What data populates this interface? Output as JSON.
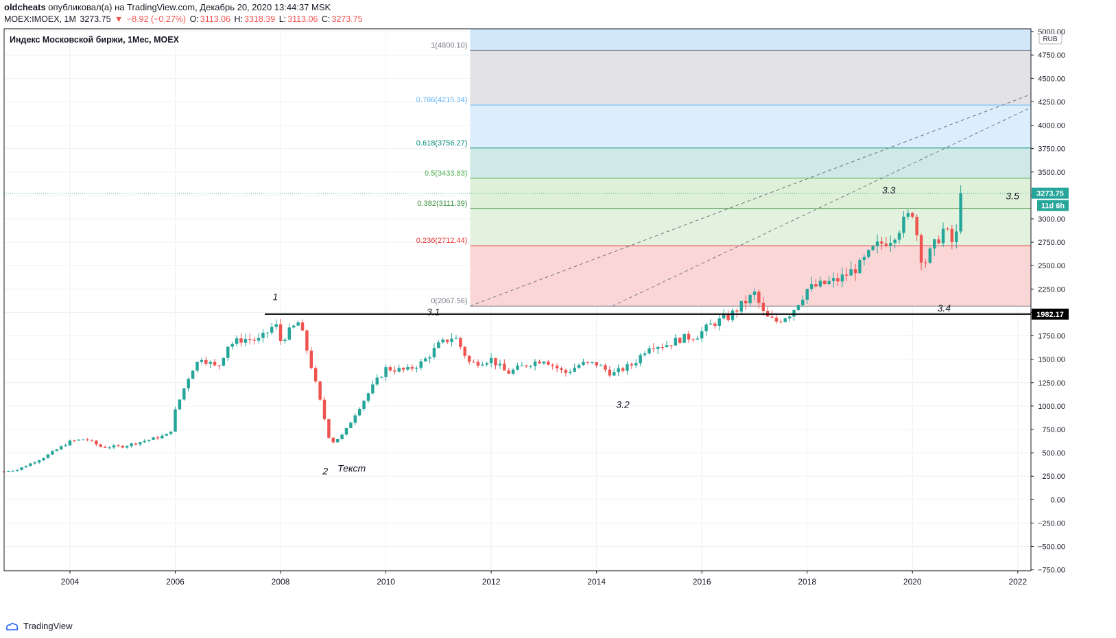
{
  "header": {
    "author": "oldcheats",
    "published": " опубликовал(а) на TradingView.com, Декабрь 20, 2020 13:44:37 MSK",
    "symbol": "MOEX:IMOEX, 1M",
    "last": "3273.75",
    "arrow": "▼",
    "change": "−8.92 (−0.27%)",
    "o_label": "O:",
    "o_val": "3113.06",
    "h_label": "H:",
    "h_val": "3318.39",
    "l_label": "L:",
    "l_val": "3113.06",
    "c_label": "C:",
    "c_val": "3273.75"
  },
  "footer": {
    "brand": "TradingView"
  },
  "colors": {
    "up": "#26a69a",
    "down": "#ef5350",
    "axis": "#131722",
    "grid": "#eef0f3"
  },
  "chart_data": {
    "type": "candlestick",
    "title": "Индекс Московской биржи, 1Мес, MOEX",
    "currency": "RUB",
    "x_ticks": [
      "2004",
      "2006",
      "2008",
      "2010",
      "2012",
      "2014",
      "2016",
      "2018",
      "2020",
      "2022"
    ],
    "y_ticks": [
      "5000.00",
      "4750.00",
      "4500.00",
      "4250.00",
      "4000.00",
      "3750.00",
      "3500.00",
      "3250.00",
      "3000.00",
      "2750.00",
      "2500.00",
      "2250.00",
      "2000.00",
      "1750.00",
      "1500.00",
      "1250.00",
      "1000.00",
      "750.00",
      "500.00",
      "250.00",
      "0.00",
      "−250.00",
      "−500.00",
      "−750.00"
    ],
    "ylim": [
      -760,
      5030
    ],
    "xlim": [
      2002.75,
      2022.25
    ],
    "last_price": {
      "value": 3273.75,
      "label": "3273.75",
      "countdown": "11d 6h"
    },
    "horizontal_line": {
      "value": 1982.17,
      "label": "1982.17"
    },
    "fib": {
      "x_start": 2011.6,
      "levels": [
        {
          "ratio": "1",
          "value": 4800.1,
          "label": "1(4800.10)",
          "color": "#787b86",
          "fill": "#d1e8fa"
        },
        {
          "ratio": "0.786",
          "value": 4215.34,
          "label": "0.786(4215.34)",
          "color": "#64b5f6",
          "fill": "#e3e3e6"
        },
        {
          "ratio": "0.618",
          "value": 3756.27,
          "label": "0.618(3756.27)",
          "color": "#00897b",
          "fill": "#dcedfc"
        },
        {
          "ratio": "0.5",
          "value": 3433.83,
          "label": "0.5(3433.83)",
          "color": "#4caf50",
          "fill": "#cfe9e6"
        },
        {
          "ratio": "0.382",
          "value": 3111.39,
          "label": "0.382(3111.39)",
          "color": "#388e3c",
          "fill": "#dff0d8"
        },
        {
          "ratio": "0.236",
          "value": 2712.44,
          "label": "0.236(2712.44)",
          "color": "#e53935",
          "fill": "#e2f2df"
        },
        {
          "ratio": "0",
          "value": 2067.56,
          "label": "0(2067.56)",
          "color": "#787b86",
          "fill": "#fbd6d6"
        }
      ]
    },
    "trend_lines": [
      {
        "x1": 2011.6,
        "y1": 2067.56,
        "x2": 2022.25,
        "y2": 4330
      },
      {
        "x1": 2014.3,
        "y1": 2067.56,
        "x2": 2022.25,
        "y2": 4190
      }
    ],
    "wave_labels": [
      {
        "text": "1",
        "x": 2007.9,
        "y": 2130
      },
      {
        "text": "2",
        "x": 2008.85,
        "y": 270
      },
      {
        "text": "Текст",
        "x": 2009.35,
        "y": 300
      },
      {
        "text": "3.1",
        "x": 2010.9,
        "y": 1970
      },
      {
        "text": "3.2",
        "x": 2014.5,
        "y": 980
      },
      {
        "text": "3.3",
        "x": 2019.55,
        "y": 3270
      },
      {
        "text": "3.4",
        "x": 2020.6,
        "y": 2010
      },
      {
        "text": "3.5",
        "x": 2021.9,
        "y": 3210
      }
    ],
    "anchors": [
      [
        2002.75,
        300
      ],
      [
        2003.0,
        320
      ],
      [
        2003.5,
        450
      ],
      [
        2004.0,
        620
      ],
      [
        2004.3,
        650
      ],
      [
        2004.6,
        560
      ],
      [
        2005.0,
        570
      ],
      [
        2005.5,
        640
      ],
      [
        2005.9,
        700
      ],
      [
        2006.0,
        950
      ],
      [
        2006.3,
        1380
      ],
      [
        2006.5,
        1520
      ],
      [
        2006.8,
        1400
      ],
      [
        2007.0,
        1650
      ],
      [
        2007.3,
        1720
      ],
      [
        2007.6,
        1700
      ],
      [
        2007.9,
        1880
      ],
      [
        2008.0,
        1700
      ],
      [
        2008.35,
        1900
      ],
      [
        2008.55,
        1500
      ],
      [
        2008.75,
        1050
      ],
      [
        2008.95,
        600
      ],
      [
        2009.2,
        700
      ],
      [
        2009.45,
        950
      ],
      [
        2009.8,
        1250
      ],
      [
        2010.0,
        1400
      ],
      [
        2010.4,
        1380
      ],
      [
        2010.7,
        1470
      ],
      [
        2011.0,
        1650
      ],
      [
        2011.3,
        1750
      ],
      [
        2011.6,
        1450
      ],
      [
        2012.0,
        1500
      ],
      [
        2012.3,
        1350
      ],
      [
        2012.7,
        1450
      ],
      [
        2013.0,
        1500
      ],
      [
        2013.4,
        1350
      ],
      [
        2013.7,
        1450
      ],
      [
        2014.0,
        1450
      ],
      [
        2014.3,
        1340
      ],
      [
        2014.7,
        1450
      ],
      [
        2015.0,
        1650
      ],
      [
        2015.3,
        1650
      ],
      [
        2015.6,
        1720
      ],
      [
        2015.9,
        1750
      ],
      [
        2016.2,
        1880
      ],
      [
        2016.5,
        1950
      ],
      [
        2016.8,
        2100
      ],
      [
        2017.0,
        2200
      ],
      [
        2017.2,
        1950
      ],
      [
        2017.4,
        1900
      ],
      [
        2017.7,
        2000
      ],
      [
        2018.0,
        2250
      ],
      [
        2018.3,
        2300
      ],
      [
        2018.6,
        2350
      ],
      [
        2019.0,
        2500
      ],
      [
        2019.3,
        2700
      ],
      [
        2019.6,
        2800
      ],
      [
        2020.0,
        3080
      ],
      [
        2020.2,
        2500
      ],
      [
        2020.4,
        2700
      ],
      [
        2020.6,
        2900
      ],
      [
        2020.8,
        2700
      ],
      [
        2020.95,
        3273.75
      ]
    ]
  }
}
